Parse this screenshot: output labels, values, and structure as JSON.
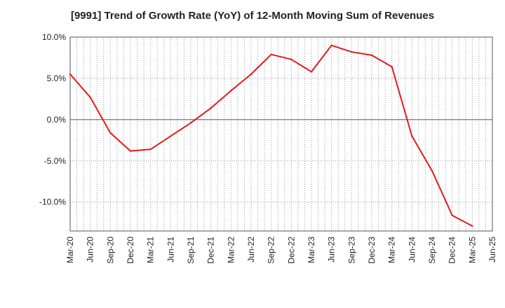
{
  "chart_data": {
    "type": "line",
    "title": "[9991]  Trend of Growth Rate (YoY) of 12-Month Moving Sum of Revenues",
    "xlabel": "",
    "ylabel": "",
    "ylim": [
      -13.5,
      10.0
    ],
    "y_ticks": [
      10.0,
      5.0,
      0.0,
      -5.0,
      -10.0
    ],
    "y_tick_labels": [
      "10.0%",
      "5.0%",
      "0.0%",
      "-5.0%",
      "-10.0%"
    ],
    "x_tick_labels": [
      "Mar-20",
      "Jun-20",
      "Sep-20",
      "Dec-20",
      "Mar-21",
      "Jun-21",
      "Sep-21",
      "Dec-21",
      "Mar-22",
      "Jun-22",
      "Sep-22",
      "Dec-22",
      "Mar-23",
      "Jun-23",
      "Sep-23",
      "Dec-23",
      "Mar-24",
      "Jun-24",
      "Sep-24",
      "Dec-24",
      "Mar-25",
      "Jun-25"
    ],
    "grid": true,
    "series": [
      {
        "color": "#e31a1c",
        "x": [
          "Mar-20",
          "Jun-20",
          "Sep-20",
          "Dec-20",
          "Mar-21",
          "Jun-21",
          "Sep-21",
          "Dec-21",
          "Mar-22",
          "Jun-22",
          "Sep-22",
          "Dec-22",
          "Mar-23",
          "Jun-23",
          "Sep-23",
          "Dec-23",
          "Mar-24",
          "Jun-24",
          "Sep-24",
          "Dec-24",
          "Mar-25"
        ],
        "values": [
          5.5,
          2.7,
          -1.6,
          -3.8,
          -3.6,
          -2.0,
          -0.4,
          1.4,
          3.5,
          5.5,
          7.9,
          7.3,
          5.8,
          9.0,
          8.2,
          7.8,
          6.4,
          -2.0,
          -6.2,
          -11.6,
          -12.9
        ]
      }
    ]
  }
}
